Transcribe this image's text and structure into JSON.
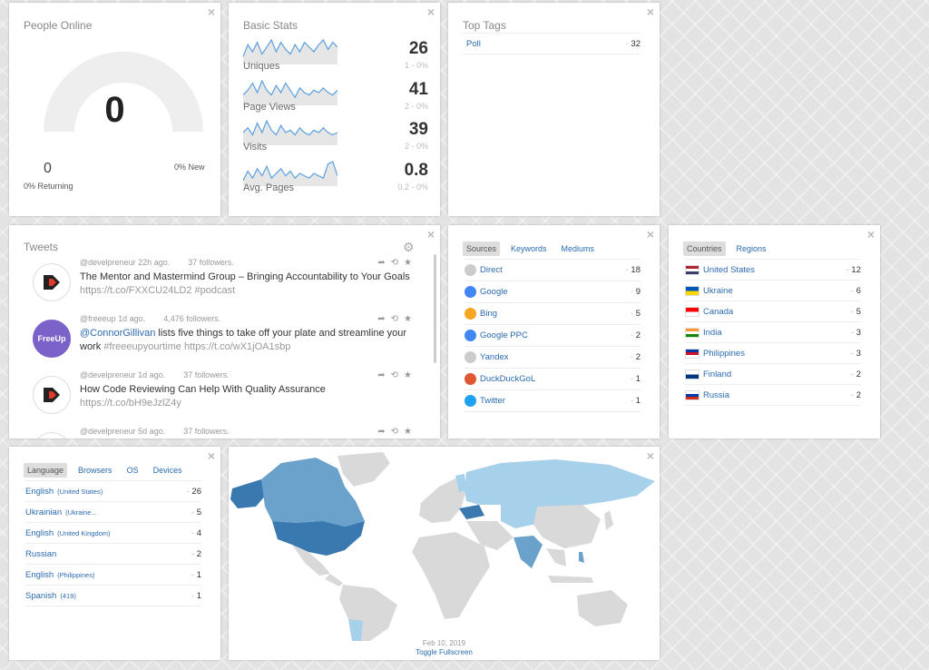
{
  "close_glyph": "×",
  "people_online": {
    "title": "People Online",
    "count": "0",
    "returning_value": "0",
    "returning_label": "0% Returning",
    "new_label": "0% New"
  },
  "basic_stats": {
    "title": "Basic Stats",
    "rows": [
      {
        "label": "Uniques",
        "value": "26",
        "sub": "1 - 0%",
        "spark": [
          3,
          8,
          5,
          9,
          4,
          7,
          10,
          5,
          9,
          6,
          4,
          8,
          5,
          9,
          7,
          5,
          8,
          10,
          6,
          9,
          7
        ]
      },
      {
        "label": "Page Views",
        "value": "41",
        "sub": "2 - 0%",
        "spark": [
          4,
          6,
          9,
          5,
          10,
          6,
          4,
          8,
          5,
          9,
          6,
          3,
          7,
          5,
          4,
          6,
          5,
          7,
          5,
          4,
          6
        ]
      },
      {
        "label": "Visits",
        "value": "39",
        "sub": "2 - 0%",
        "spark": [
          5,
          7,
          4,
          9,
          5,
          10,
          6,
          4,
          8,
          5,
          6,
          4,
          7,
          5,
          4,
          6,
          5,
          7,
          5,
          4,
          5
        ]
      },
      {
        "label": "Avg. Pages",
        "value": "0.8",
        "sub": "0.2 - 0%",
        "spark": [
          2,
          6,
          3,
          7,
          4,
          8,
          3,
          5,
          7,
          4,
          6,
          3,
          5,
          4,
          3,
          5,
          4,
          3,
          9,
          10,
          4
        ]
      }
    ]
  },
  "top_tags": {
    "title": "Top Tags",
    "items": [
      {
        "label": "Poll",
        "count": "32"
      }
    ]
  },
  "tweets": {
    "title": "Tweets",
    "items": [
      {
        "handle": "@develpreneur 22h ago.",
        "followers": "37 followers.",
        "text": "The Mentor and Mastermind Group – Bringing Accountability to Your Goals",
        "link": "https://t.co/FXXCU24LD2 #podcast",
        "avatar": "develpreneur"
      },
      {
        "handle": "@freeeup 1d ago.",
        "followers": "4,476 followers.",
        "mention": "@ConnorGillivan",
        "text": " lists five things to take off your plate and streamline your work",
        "link": "#freeeupyourtime https://t.co/wX1jOA1sbp",
        "avatar": "FreeUp"
      },
      {
        "handle": "@develpreneur 1d ago.",
        "followers": "37 followers.",
        "text": "How Code Reviewing Can Help With Quality Assurance",
        "link": "https://t.co/bH9eJzlZ4y",
        "avatar": "develpreneur"
      },
      {
        "handle": "@develpreneur 5d ago.",
        "followers": "37 followers.",
        "text": "",
        "link": "",
        "avatar": "develpreneur"
      }
    ]
  },
  "sources": {
    "tabs": [
      "Sources",
      "Keywords",
      "Mediums"
    ],
    "items": [
      {
        "label": "Direct",
        "count": "18",
        "icon": "direct-icon",
        "color": "#cccccc"
      },
      {
        "label": "Google",
        "count": "9",
        "icon": "google-icon",
        "color": "#4285f4"
      },
      {
        "label": "Bing",
        "count": "5",
        "icon": "bing-icon",
        "color": "#f5a623"
      },
      {
        "label": "Google PPC",
        "count": "2",
        "icon": "google-icon",
        "color": "#4285f4"
      },
      {
        "label": "Yandex",
        "count": "2",
        "icon": "yandex-icon",
        "color": "#cccccc"
      },
      {
        "label": "DuckDuckGoL",
        "count": "1",
        "icon": "duckduckgo-icon",
        "color": "#de5833"
      },
      {
        "label": "Twitter",
        "count": "1",
        "icon": "twitter-icon",
        "color": "#1da1f2"
      }
    ]
  },
  "countries": {
    "tabs": [
      "Countries",
      "Regions"
    ],
    "items": [
      {
        "label": "United States",
        "count": "12",
        "flag": "us-flag",
        "colors": [
          "#b22234",
          "#ffffff",
          "#3c3b6e"
        ]
      },
      {
        "label": "Ukraine",
        "count": "6",
        "flag": "ua-flag",
        "colors": [
          "#0057b7",
          "#ffd700"
        ]
      },
      {
        "label": "Canada",
        "count": "5",
        "flag": "ca-flag",
        "colors": [
          "#ff0000",
          "#ffffff"
        ]
      },
      {
        "label": "India",
        "count": "3",
        "flag": "in-flag",
        "colors": [
          "#ff9933",
          "#ffffff",
          "#138808"
        ]
      },
      {
        "label": "Philippines",
        "count": "3",
        "flag": "ph-flag",
        "colors": [
          "#0038a8",
          "#ce1126",
          "#ffffff"
        ]
      },
      {
        "label": "Finland",
        "count": "2",
        "flag": "fi-flag",
        "colors": [
          "#ffffff",
          "#003580"
        ]
      },
      {
        "label": "Russia",
        "count": "2",
        "flag": "ru-flag",
        "colors": [
          "#ffffff",
          "#0039a6",
          "#d52b1e"
        ]
      }
    ]
  },
  "language": {
    "tabs": [
      "Language",
      "Browsers",
      "OS",
      "Devices"
    ],
    "items": [
      {
        "label": "English",
        "sub": "(United States)",
        "count": "26"
      },
      {
        "label": "Ukrainian",
        "sub": "(Ukraine...",
        "count": "5"
      },
      {
        "label": "English",
        "sub": "(United Kingdom)",
        "count": "4"
      },
      {
        "label": "Russian",
        "sub": "",
        "count": "2"
      },
      {
        "label": "English",
        "sub": "(Philippines)",
        "count": "1"
      },
      {
        "label": "Spanish",
        "sub": "(419)",
        "count": "1"
      }
    ]
  },
  "world_map": {
    "date": "Feb 10, 2019",
    "toggle_label": "Toggle Fullscreen",
    "colors": {
      "high": "#3a78b0",
      "mid": "#6aa2cc",
      "low": "#a7d0ea",
      "none": "#d9d9d9"
    }
  }
}
